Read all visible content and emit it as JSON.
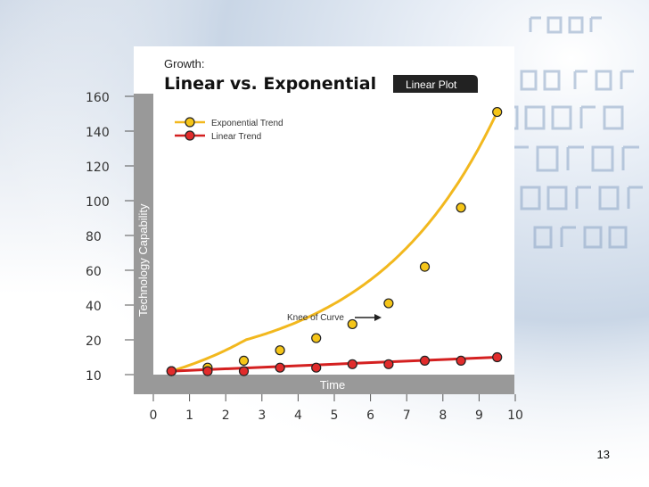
{
  "slide": {
    "page_number": "13"
  },
  "chart_data": {
    "type": "line",
    "title_small": "Growth:",
    "title": "Linear vs. Exponential",
    "badge": "Linear Plot",
    "xlabel": "Time",
    "ylabel": "Technology Capability",
    "x_ticks": [
      "0",
      "1",
      "2",
      "3",
      "4",
      "5",
      "6",
      "7",
      "8",
      "9",
      "10"
    ],
    "y_ticks": [
      "10",
      "20",
      "40",
      "60",
      "80",
      "100",
      "120",
      "140",
      "160"
    ],
    "xlim": [
      0,
      10
    ],
    "ylim": [
      10,
      160
    ],
    "legend_position": "top-left",
    "grid": false,
    "series": [
      {
        "name": "Exponential Trend",
        "color": "#f5c518",
        "line_color": "#f2b81e",
        "x": [
          0.5,
          1.5,
          2.5,
          3.5,
          4.5,
          5.5,
          6.5,
          7.5,
          8.5,
          9.5
        ],
        "y": [
          11,
          12,
          14,
          17,
          21,
          29,
          41,
          62,
          96,
          151
        ]
      },
      {
        "name": "Linear Trend",
        "color": "#e12b2b",
        "line_color": "#d42020",
        "x": [
          0.5,
          1.5,
          2.5,
          3.5,
          4.5,
          5.5,
          6.5,
          7.5,
          8.5,
          9.5
        ],
        "y": [
          11,
          11,
          11,
          12,
          12,
          13,
          13,
          14,
          14,
          15
        ]
      }
    ],
    "annotations": [
      {
        "text": "Knee of Curve",
        "x": 6.5,
        "y": 41
      }
    ]
  }
}
